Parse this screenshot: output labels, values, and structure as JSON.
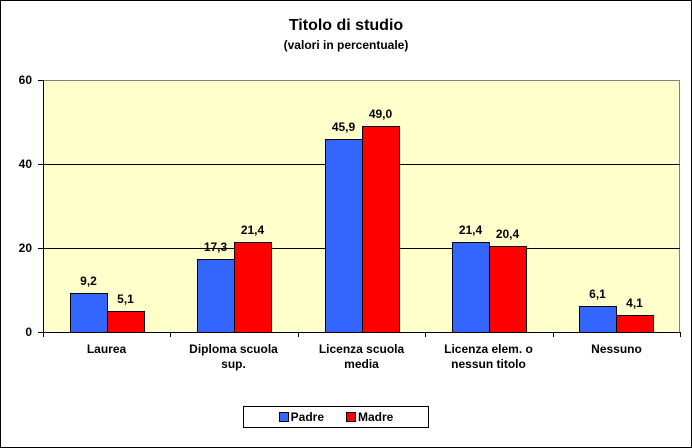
{
  "chart_data": {
    "type": "bar",
    "title": "Titolo di studio",
    "subtitle": "(valori in percentuale)",
    "xlabel": "",
    "ylabel": "",
    "ylim": [
      0,
      60
    ],
    "yticks": [
      "0",
      "20",
      "40",
      "60"
    ],
    "grid": true,
    "legend_position": "bottom",
    "categories": [
      "Laurea",
      "Diploma scuola sup.",
      "Licenza scuola media",
      "Licenza elem. o nessun titolo",
      "Nessuno"
    ],
    "category_lines": [
      [
        "Laurea"
      ],
      [
        "Diploma scuola",
        "sup."
      ],
      [
        "Licenza scuola",
        "media"
      ],
      [
        "Licenza elem. o",
        "nessun titolo"
      ],
      [
        "Nessuno"
      ]
    ],
    "series": [
      {
        "name": "Padre",
        "color": "#3366ff",
        "values": [
          9.2,
          17.3,
          45.9,
          21.4,
          6.1
        ],
        "labels": [
          "9,2",
          "17,3",
          "45,9",
          "21,4",
          "6,1"
        ]
      },
      {
        "name": "Madre",
        "color": "#ff0000",
        "values": [
          5.1,
          21.4,
          49.0,
          20.4,
          4.1
        ],
        "labels": [
          "5,1",
          "21,4",
          "49,0",
          "20,4",
          "4,1"
        ]
      }
    ],
    "plot_background": "#ffffcc"
  }
}
